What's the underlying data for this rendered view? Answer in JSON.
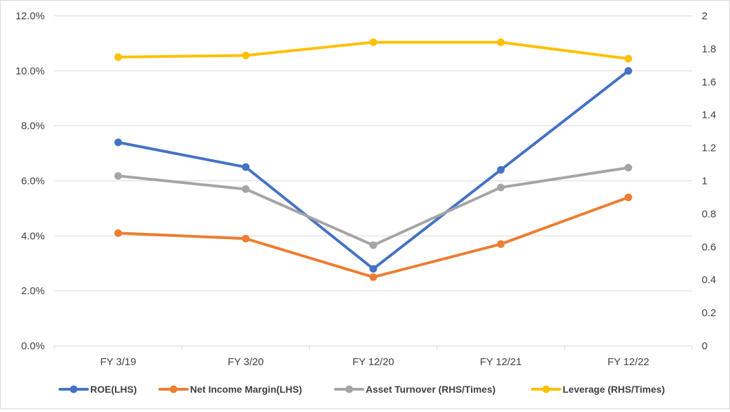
{
  "chart_data": {
    "type": "line",
    "title": "",
    "xlabel": "",
    "ylabel_left": "",
    "ylabel_right": "",
    "categories": [
      "FY 3/19",
      "FY 3/20",
      "FY 12/20",
      "FY 12/21",
      "FY 12/22"
    ],
    "left_axis": {
      "min": 0,
      "max": 0.12,
      "step": 0.02,
      "tick_labels": [
        "0.0%",
        "2.0%",
        "4.0%",
        "6.0%",
        "8.0%",
        "10.0%",
        "12.0%"
      ]
    },
    "right_axis": {
      "min": 0,
      "max": 2,
      "step": 0.2,
      "tick_labels": [
        "0",
        "0.2",
        "0.4",
        "0.6",
        "0.8",
        "1",
        "1.2",
        "1.4",
        "1.6",
        "1.8",
        "2"
      ]
    },
    "grid": true,
    "legend_position": "bottom",
    "series": [
      {
        "name": "ROE(LHS)",
        "axis": "left",
        "color": "#4472C4",
        "values": [
          0.074,
          0.065,
          0.028,
          0.064,
          0.1
        ]
      },
      {
        "name": "Net Income Margin(LHS)",
        "axis": "left",
        "color": "#ED7D31",
        "values": [
          0.041,
          0.039,
          0.025,
          0.037,
          0.054
        ]
      },
      {
        "name": "Asset Turnover (RHS/Times)",
        "axis": "right",
        "color": "#A5A5A5",
        "values": [
          1.03,
          0.95,
          0.61,
          0.96,
          1.08
        ]
      },
      {
        "name": "Leverage (RHS/Times)",
        "axis": "right",
        "color": "#FFC000",
        "values": [
          1.75,
          1.76,
          1.84,
          1.84,
          1.74
        ]
      }
    ]
  }
}
